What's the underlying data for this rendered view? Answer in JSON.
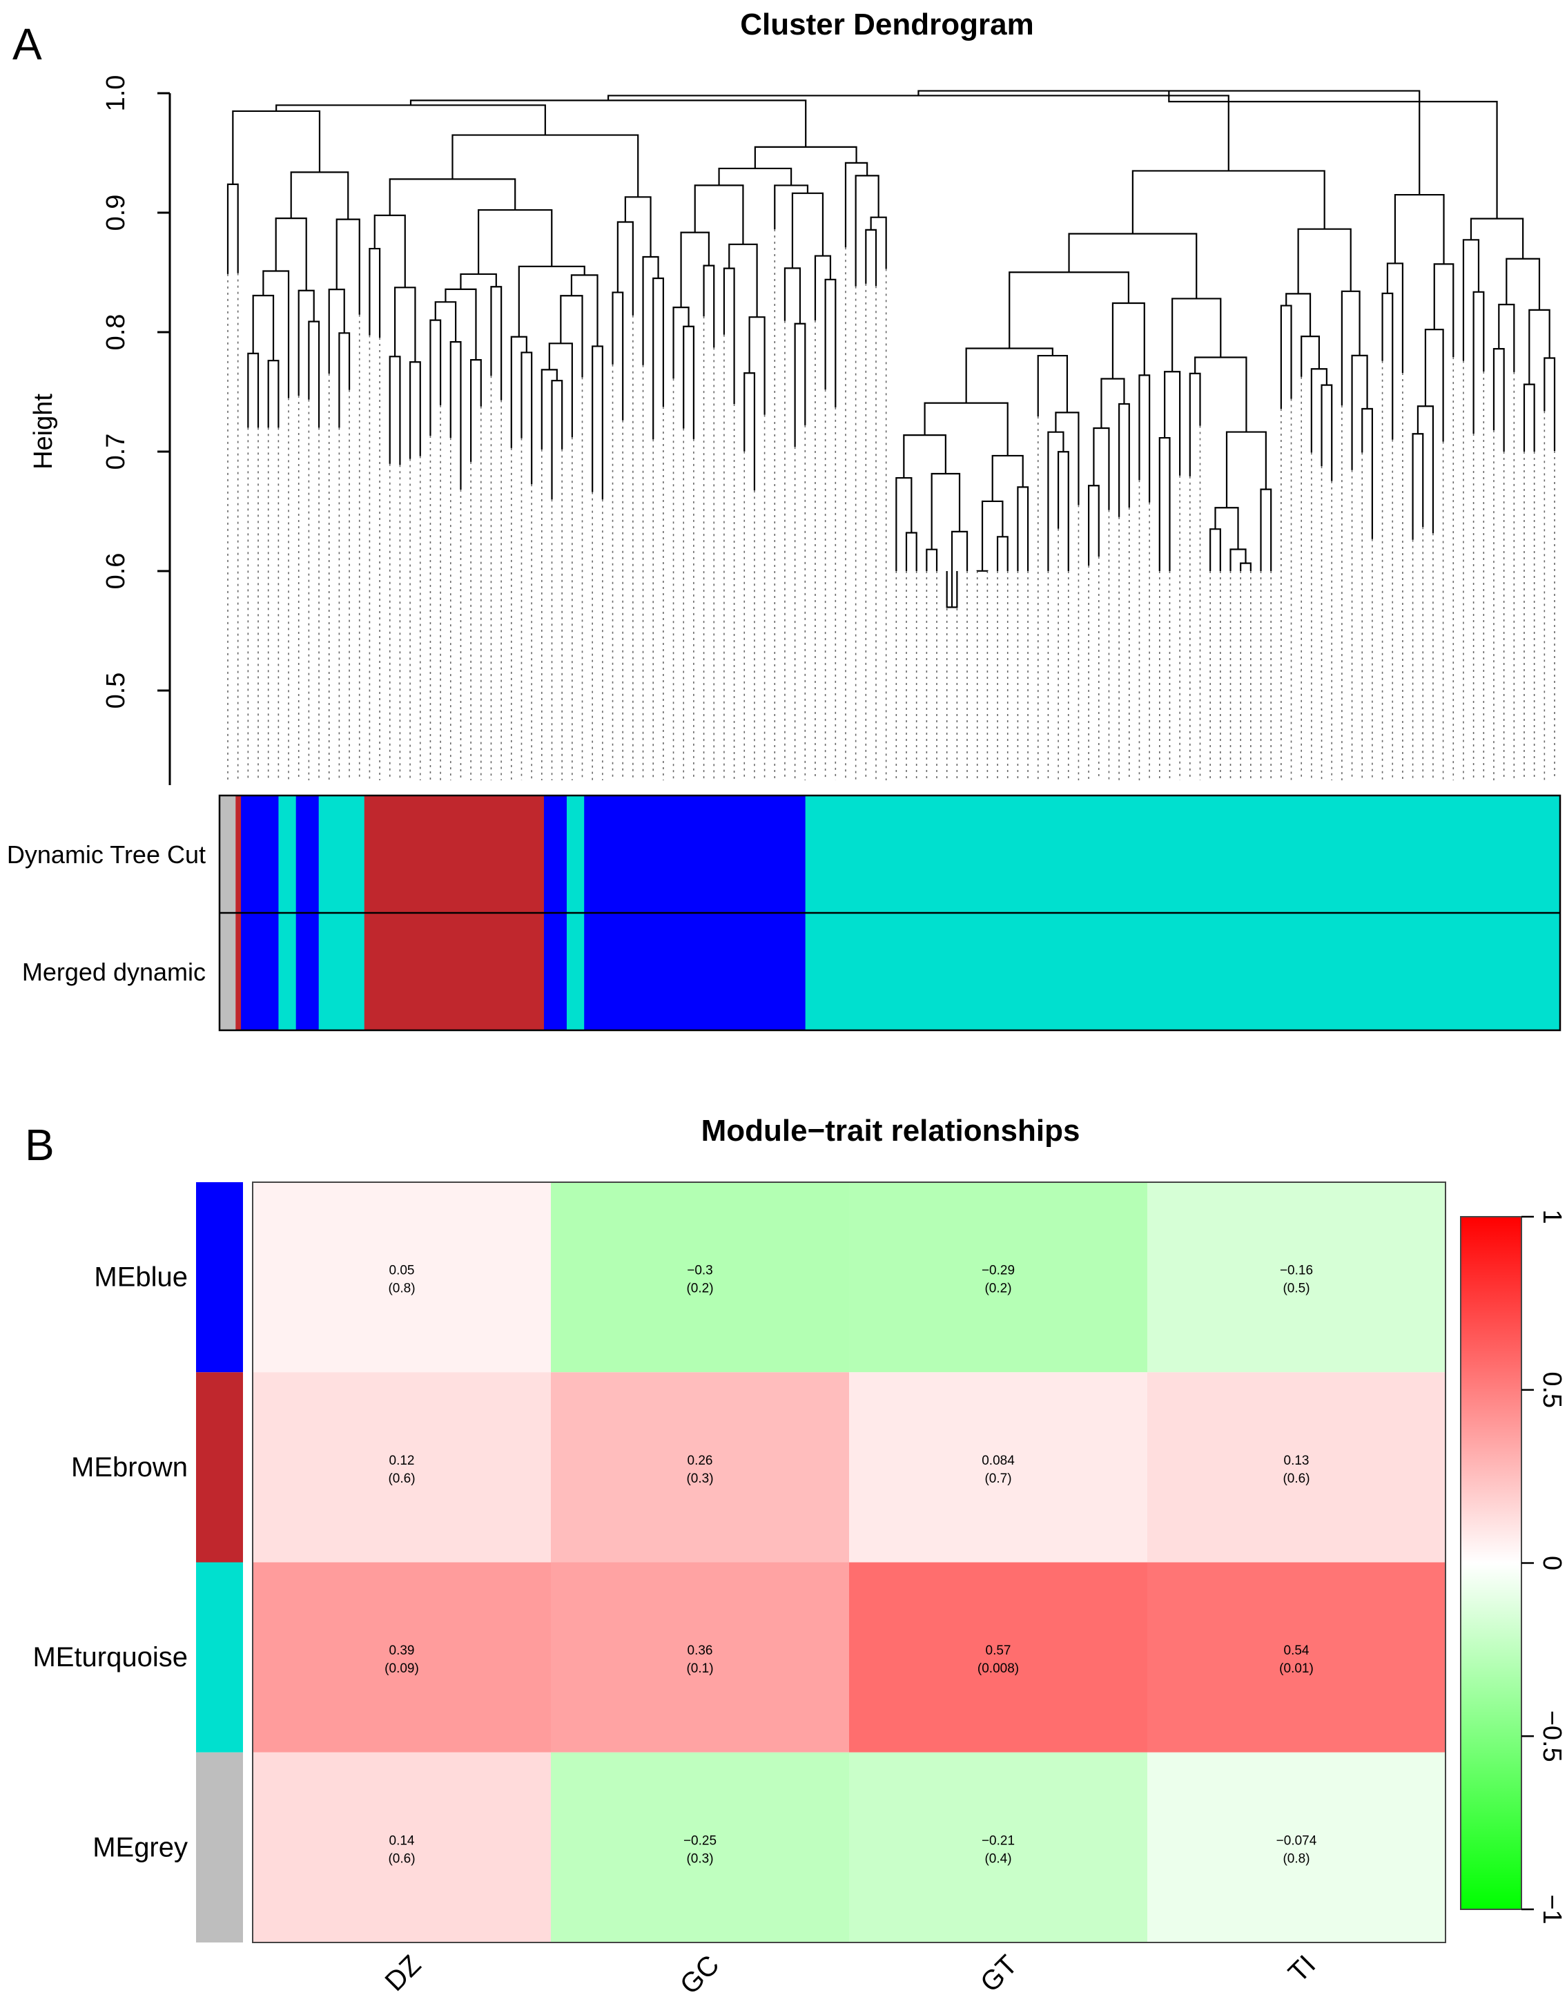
{
  "panel_a": {
    "label": "A",
    "title": "Cluster Dendrogram",
    "ylabel": "Height",
    "yticks": [
      "1.0",
      "0.9",
      "0.8",
      "0.7",
      "0.6",
      "0.5"
    ],
    "row_labels": [
      "Dynamic Tree Cut",
      "Merged dynamic"
    ]
  },
  "panel_b": {
    "label": "B",
    "title": "Module−trait relationships",
    "legend_ticks": [
      "1",
      "0.5",
      "0",
      "−0.5",
      "−1"
    ]
  },
  "colors": {
    "blue": "#0000ff",
    "brown": "#c0272d",
    "turquoise": "#00e0cf",
    "grey": "#bebebe",
    "positive": "#ff0000",
    "negative": "#00ff00"
  },
  "chart_data": [
    {
      "type": "dendrogram",
      "title": "Cluster Dendrogram",
      "ylabel": "Height",
      "ylim": [
        0.42,
        1.0
      ],
      "yticks": [
        0.5,
        0.6,
        0.7,
        0.8,
        0.9,
        1.0
      ],
      "module_colors_by_leaf_order": [
        {
          "module": "grey",
          "fraction": 0.012
        },
        {
          "module": "brown",
          "fraction": 0.004
        },
        {
          "module": "blue",
          "fraction": 0.028
        },
        {
          "module": "turquoise",
          "fraction": 0.013
        },
        {
          "module": "blue",
          "fraction": 0.017
        },
        {
          "module": "turquoise",
          "fraction": 0.034
        },
        {
          "module": "brown",
          "fraction": 0.134
        },
        {
          "module": "blue",
          "fraction": 0.017
        },
        {
          "module": "turquoise",
          "fraction": 0.013
        },
        {
          "module": "blue",
          "fraction": 0.165
        },
        {
          "module": "turquoise",
          "fraction": 0.563
        }
      ],
      "rows": [
        "Dynamic Tree Cut",
        "Merged dynamic"
      ]
    },
    {
      "type": "heatmap",
      "title": "Module−trait relationships",
      "rows": [
        "MEblue",
        "MEbrown",
        "MEturquoise",
        "MEgrey"
      ],
      "row_colors": [
        "blue",
        "brown",
        "turquoise",
        "grey"
      ],
      "columns": [
        "DZ",
        "GC",
        "GT",
        "TI"
      ],
      "correlation": [
        [
          0.05,
          -0.3,
          -0.29,
          -0.16
        ],
        [
          0.12,
          0.26,
          0.084,
          0.13
        ],
        [
          0.39,
          0.36,
          0.57,
          0.54
        ],
        [
          0.14,
          -0.25,
          -0.21,
          -0.074
        ]
      ],
      "correlation_labels": [
        [
          "0.05",
          "−0.3",
          "−0.29",
          "−0.16"
        ],
        [
          "0.12",
          "0.26",
          "0.084",
          "0.13"
        ],
        [
          "0.39",
          "0.36",
          "0.57",
          "0.54"
        ],
        [
          "0.14",
          "−0.25",
          "−0.21",
          "−0.074"
        ]
      ],
      "pvalue_labels": [
        [
          "(0.8)",
          "(0.2)",
          "(0.2)",
          "(0.5)"
        ],
        [
          "(0.6)",
          "(0.3)",
          "(0.7)",
          "(0.6)"
        ],
        [
          "(0.09)",
          "(0.1)",
          "(0.008)",
          "(0.01)"
        ],
        [
          "(0.6)",
          "(0.3)",
          "(0.4)",
          "(0.8)"
        ]
      ],
      "color_scale": {
        "min": -1,
        "max": 1,
        "low": "#00ff00",
        "mid": "#ffffff",
        "high": "#ff0000"
      }
    }
  ]
}
